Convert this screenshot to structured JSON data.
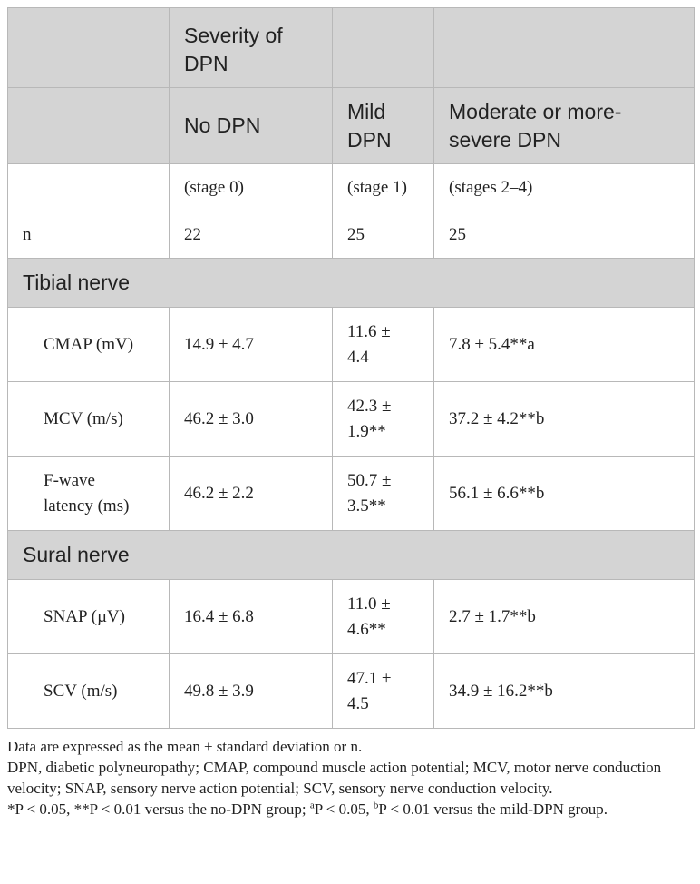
{
  "header": {
    "row1": {
      "c1": "",
      "c2": "Severity of DPN",
      "c3": "",
      "c4": ""
    },
    "row2": {
      "c1": "",
      "c2": "No DPN",
      "c3": "Mild DPN",
      "c4": "Moderate or more-severe DPN"
    }
  },
  "stages": {
    "c1": "",
    "c2": "(stage 0)",
    "c3": "(stage 1)",
    "c4": "(stages 2–4)"
  },
  "n_row": {
    "label": "n",
    "c2": "22",
    "c3": "25",
    "c4": "25"
  },
  "sections": [
    {
      "title": "Tibial nerve",
      "rows": [
        {
          "label": "CMAP (mV)",
          "no": "14.9 ± 4.7",
          "mild": "11.6 ± 4.4",
          "mod": "7.8 ± 5.4**a"
        },
        {
          "label": "MCV (m/s)",
          "no": "46.2 ± 3.0",
          "mild": "42.3 ± 1.9**",
          "mod": "37.2 ± 4.2**b"
        },
        {
          "label": "F-wave latency (ms)",
          "no": "46.2 ± 2.2",
          "mild": "50.7 ± 3.5**",
          "mod": "56.1 ± 6.6**b"
        }
      ]
    },
    {
      "title": "Sural nerve",
      "rows": [
        {
          "label": "SNAP (µV)",
          "no": "16.4 ± 6.8",
          "mild": "11.0 ± 4.6**",
          "mod": "2.7 ± 1.7**b"
        },
        {
          "label": "SCV (m/s)",
          "no": "49.8 ± 3.9",
          "mild": "47.1 ± 4.5",
          "mod": "34.9 ± 16.2**b"
        }
      ]
    }
  ],
  "footnotes": {
    "line1": "Data are expressed as the mean ± standard deviation or n.",
    "line2": "DPN, diabetic polyneuropathy; CMAP, compound muscle action potential; MCV, motor nerve conduction velocity; SNAP, sensory nerve action potential; SCV, sensory nerve conduction velocity.",
    "line3_a": "*P < 0.05, **P < 0.01 versus the no-DPN group; ",
    "sup_a": "a",
    "line3_b": "P < 0.05, ",
    "sup_b": "b",
    "line3_c": "P < 0.01 versus the mild-DPN group."
  }
}
